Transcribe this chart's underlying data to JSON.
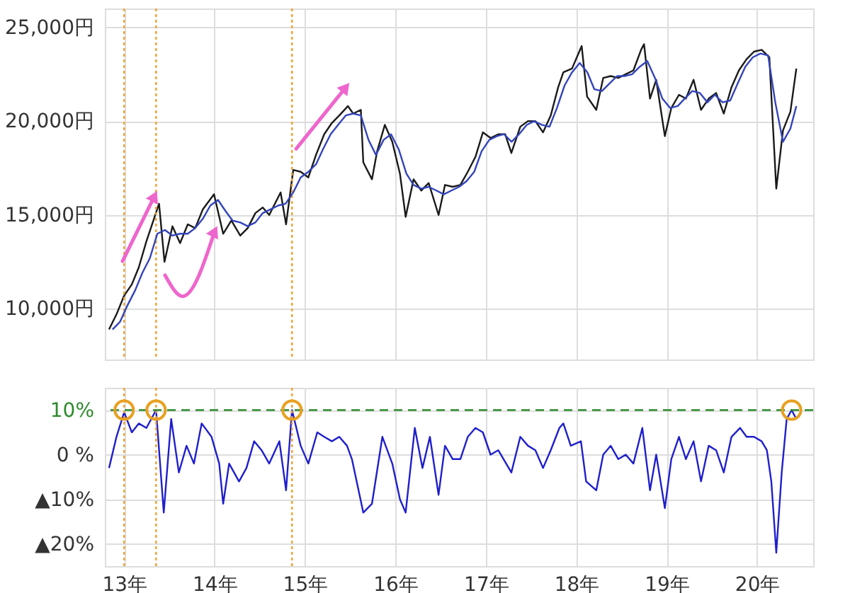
{
  "chart_data": [
    {
      "type": "line",
      "grid": true,
      "tick_labels": "y",
      "xlim": [
        "2012-10-15",
        "2020-08-15"
      ],
      "xticks": [
        {
          "value": "2013-01-01",
          "label": null
        },
        {
          "value": "2014-01-01",
          "label": null
        },
        {
          "value": "2015-01-01",
          "label": null
        },
        {
          "value": "2016-01-01",
          "label": null
        },
        {
          "value": "2017-01-01",
          "label": null
        },
        {
          "value": "2018-01-01",
          "label": null
        },
        {
          "value": "2019-01-01",
          "label": null
        },
        {
          "value": "2020-01-01",
          "label": null
        }
      ],
      "ylim": [
        7300,
        26000
      ],
      "yticks": [
        {
          "value": 10000,
          "label": "10,000円"
        },
        {
          "value": 15000,
          "label": "15,000円"
        },
        {
          "value": 20000,
          "label": "20,000円"
        },
        {
          "value": 25000,
          "label": "25,000円"
        }
      ],
      "series": [
        {
          "color": "#1a1a1a",
          "x": [
            "2012-11-01",
            "2012-12-01",
            "2013-01-01",
            "2013-02-01",
            "2013-03-01",
            "2013-04-01",
            "2013-05-22",
            "2013-06-13",
            "2013-07-15",
            "2013-08-15",
            "2013-09-15",
            "2013-10-15",
            "2013-11-15",
            "2013-12-30",
            "2014-02-05",
            "2014-03-10",
            "2014-04-15",
            "2014-05-15",
            "2014-06-15",
            "2014-07-15",
            "2014-08-10",
            "2014-09-25",
            "2014-10-17",
            "2014-11-15",
            "2014-12-15",
            "2015-01-15",
            "2015-02-15",
            "2015-03-20",
            "2015-04-20",
            "2015-05-20",
            "2015-06-24",
            "2015-07-15",
            "2015-08-15",
            "2015-08-25",
            "2015-09-29",
            "2015-10-20",
            "2015-11-20",
            "2015-12-20",
            "2016-01-20",
            "2016-02-12",
            "2016-03-15",
            "2016-04-15",
            "2016-05-15",
            "2016-06-24",
            "2016-07-20",
            "2016-08-20",
            "2016-09-20",
            "2016-10-20",
            "2016-11-20",
            "2016-12-20",
            "2017-01-20",
            "2017-02-20",
            "2017-03-20",
            "2017-04-14",
            "2017-05-20",
            "2017-06-20",
            "2017-07-20",
            "2017-08-20",
            "2017-09-20",
            "2017-10-20",
            "2017-11-10",
            "2017-12-15",
            "2018-01-23",
            "2018-02-14",
            "2018-03-23",
            "2018-04-20",
            "2018-05-20",
            "2018-06-20",
            "2018-07-20",
            "2018-08-20",
            "2018-09-20",
            "2018-10-02",
            "2018-10-26",
            "2018-11-20",
            "2018-12-25",
            "2019-01-20",
            "2019-02-20",
            "2019-03-20",
            "2019-04-20",
            "2019-05-20",
            "2019-06-20",
            "2019-07-20",
            "2019-08-20",
            "2019-09-20",
            "2019-10-20",
            "2019-11-20",
            "2019-12-20",
            "2020-01-20",
            "2020-02-20",
            "2020-03-19",
            "2020-04-15",
            "2020-05-15",
            "2020-06-08"
          ],
          "values": [
            8900,
            9700,
            10700,
            11300,
            12200,
            13600,
            15600,
            12500,
            14400,
            13500,
            14500,
            14300,
            15300,
            16100,
            14000,
            14700,
            13900,
            14300,
            15100,
            15400,
            15000,
            16200,
            14500,
            17400,
            17300,
            17000,
            18200,
            19300,
            19900,
            20300,
            20800,
            20400,
            20600,
            17800,
            16900,
            18400,
            19800,
            18900,
            17200,
            14900,
            16900,
            16300,
            16700,
            15000,
            16600,
            16500,
            16600,
            17300,
            18100,
            19400,
            19100,
            19300,
            19300,
            18300,
            19700,
            20000,
            20000,
            19400,
            20300,
            21800,
            22600,
            22800,
            24000,
            21300,
            20600,
            22300,
            22400,
            22300,
            22500,
            22700,
            23800,
            24100,
            21200,
            22200,
            19200,
            20700,
            21400,
            21200,
            22200,
            20600,
            21200,
            21500,
            20400,
            21800,
            22700,
            23300,
            23700,
            23800,
            23400,
            16400,
            19500,
            20500,
            22800
          ]
        },
        {
          "color": "#3344bb",
          "x": [
            "2012-11-15",
            "2012-12-15",
            "2013-01-15",
            "2013-02-15",
            "2013-03-15",
            "2013-04-15",
            "2013-05-15",
            "2013-06-15",
            "2013-07-15",
            "2013-08-15",
            "2013-09-15",
            "2013-10-15",
            "2013-11-15",
            "2013-12-15",
            "2014-01-15",
            "2014-02-15",
            "2014-03-15",
            "2014-04-15",
            "2014-05-15",
            "2014-06-15",
            "2014-07-15",
            "2014-08-15",
            "2014-09-15",
            "2014-10-15",
            "2014-11-15",
            "2014-12-15",
            "2015-01-15",
            "2015-02-15",
            "2015-03-15",
            "2015-04-15",
            "2015-05-15",
            "2015-06-15",
            "2015-07-15",
            "2015-08-15",
            "2015-09-15",
            "2015-10-15",
            "2015-11-15",
            "2015-12-15",
            "2016-01-15",
            "2016-02-15",
            "2016-03-15",
            "2016-04-15",
            "2016-05-15",
            "2016-06-15",
            "2016-07-15",
            "2016-08-15",
            "2016-09-15",
            "2016-10-15",
            "2016-11-15",
            "2016-12-15",
            "2017-01-15",
            "2017-02-15",
            "2017-03-15",
            "2017-04-15",
            "2017-05-15",
            "2017-06-15",
            "2017-07-15",
            "2017-08-15",
            "2017-09-15",
            "2017-10-15",
            "2017-11-15",
            "2017-12-15",
            "2018-01-15",
            "2018-02-15",
            "2018-03-15",
            "2018-04-15",
            "2018-05-15",
            "2018-06-15",
            "2018-07-15",
            "2018-08-15",
            "2018-09-15",
            "2018-10-15",
            "2018-11-15",
            "2018-12-15",
            "2019-01-15",
            "2019-02-15",
            "2019-03-15",
            "2019-04-15",
            "2019-05-15",
            "2019-06-15",
            "2019-07-15",
            "2019-08-15",
            "2019-09-15",
            "2019-10-15",
            "2019-11-15",
            "2019-12-15",
            "2020-01-15",
            "2020-02-15",
            "2020-03-15",
            "2020-04-15",
            "2020-05-15",
            "2020-06-08"
          ],
          "values": [
            8900,
            9300,
            10200,
            11000,
            11900,
            12700,
            14000,
            14200,
            13900,
            14000,
            14000,
            14300,
            14800,
            15500,
            15800,
            15200,
            14700,
            14600,
            14400,
            14600,
            15100,
            15300,
            15500,
            15600,
            16200,
            17000,
            17300,
            17700,
            18500,
            19300,
            19800,
            20300,
            20400,
            20300,
            19000,
            18200,
            19000,
            19300,
            18500,
            17200,
            16600,
            16400,
            16500,
            16300,
            16100,
            16300,
            16500,
            16800,
            17300,
            18400,
            19000,
            19200,
            19300,
            18900,
            19300,
            19800,
            20000,
            19800,
            19700,
            20700,
            21900,
            22600,
            23100,
            22600,
            21700,
            21600,
            22000,
            22400,
            22400,
            22500,
            22900,
            23200,
            22300,
            21200,
            20700,
            20800,
            21200,
            21600,
            21500,
            21000,
            21400,
            21000,
            21100,
            22000,
            22900,
            23400,
            23600,
            23500,
            21000,
            18900,
            19600,
            20800
          ]
        }
      ],
      "ref_lines": [
        {
          "axis": "x",
          "value": "2013-01-01",
          "color": "#f0a030",
          "line_style": "dotted"
        },
        {
          "axis": "x",
          "value": "2013-05-10",
          "color": "#f0a030",
          "line_style": "dotted"
        },
        {
          "axis": "x",
          "value": "2014-11-10",
          "color": "#f0a030",
          "line_style": "dotted"
        }
      ]
    },
    {
      "type": "line",
      "grid": true,
      "xlim": [
        "2012-10-15",
        "2020-08-15"
      ],
      "xticks": [
        {
          "value": "2013-01-01",
          "label": "13年"
        },
        {
          "value": "2014-01-01",
          "label": "14年"
        },
        {
          "value": "2015-01-01",
          "label": "15年"
        },
        {
          "value": "2016-01-01",
          "label": "16年"
        },
        {
          "value": "2017-01-01",
          "label": "17年"
        },
        {
          "value": "2018-01-01",
          "label": "18年"
        },
        {
          "value": "2019-01-01",
          "label": "19年"
        },
        {
          "value": "2020-01-01",
          "label": "20年"
        }
      ],
      "ylim": [
        -25,
        15
      ],
      "yticks": [
        {
          "value": 10,
          "label": "10%"
        },
        {
          "value": 0,
          "label": "0 %"
        },
        {
          "value": -10,
          "label": "▲10%"
        },
        {
          "value": -20,
          "label": "▲20%"
        }
      ],
      "series": [
        {
          "color": "#1f1fcc",
          "x": [
            "2012-11-01",
            "2012-12-01",
            "2013-01-01",
            "2013-02-01",
            "2013-03-01",
            "2013-04-01",
            "2013-05-10",
            "2013-06-10",
            "2013-07-10",
            "2013-08-10",
            "2013-09-10",
            "2013-10-10",
            "2013-11-10",
            "2013-12-20",
            "2014-01-20",
            "2014-02-05",
            "2014-03-01",
            "2014-04-10",
            "2014-05-10",
            "2014-06-10",
            "2014-07-10",
            "2014-08-10",
            "2014-09-20",
            "2014-10-17",
            "2014-11-10",
            "2014-12-15",
            "2015-01-15",
            "2015-02-20",
            "2015-03-20",
            "2015-04-20",
            "2015-05-20",
            "2015-06-20",
            "2015-07-10",
            "2015-08-25",
            "2015-09-29",
            "2015-11-10",
            "2015-12-20",
            "2016-01-20",
            "2016-02-12",
            "2016-03-20",
            "2016-04-20",
            "2016-05-20",
            "2016-06-24",
            "2016-07-20",
            "2016-08-20",
            "2016-09-20",
            "2016-10-20",
            "2016-11-20",
            "2016-12-20",
            "2017-01-20",
            "2017-02-20",
            "2017-04-14",
            "2017-05-20",
            "2017-06-20",
            "2017-07-20",
            "2017-08-20",
            "2017-09-20",
            "2017-10-25",
            "2017-11-10",
            "2017-12-10",
            "2018-01-20",
            "2018-02-10",
            "2018-03-23",
            "2018-04-20",
            "2018-05-20",
            "2018-06-20",
            "2018-07-20",
            "2018-08-20",
            "2018-09-25",
            "2018-10-26",
            "2018-11-20",
            "2018-12-25",
            "2019-01-20",
            "2019-02-20",
            "2019-03-20",
            "2019-04-20",
            "2019-05-20",
            "2019-06-20",
            "2019-07-20",
            "2019-08-20",
            "2019-09-20",
            "2019-10-25",
            "2019-11-20",
            "2019-12-20",
            "2020-01-20",
            "2020-02-10",
            "2020-02-28",
            "2020-03-19",
            "2020-04-10",
            "2020-04-30",
            "2020-05-20",
            "2020-06-08"
          ],
          "values": [
            -3,
            4,
            9.5,
            5,
            7,
            6,
            10,
            -13,
            8,
            -4,
            2,
            -2,
            7,
            4,
            -2,
            -11,
            -2,
            -6,
            -3,
            3,
            1,
            -2,
            3,
            -8,
            10,
            2,
            -2,
            5,
            4,
            3,
            4,
            2,
            -1,
            -13,
            -11,
            4,
            -2,
            -10,
            -13,
            6,
            -3,
            4,
            -9,
            2,
            -1,
            -1,
            4,
            6,
            5,
            0,
            1,
            -4,
            4,
            2,
            1,
            -3,
            1,
            6,
            7,
            2,
            3,
            -6,
            -8,
            0,
            2,
            -1,
            0,
            -2,
            6,
            -8,
            0,
            -12,
            -1,
            4,
            -1,
            3,
            -6,
            2,
            1,
            -4,
            4,
            6,
            4,
            4,
            3,
            1,
            -6,
            -22,
            -4,
            8,
            10,
            8
          ]
        },
        {
          "type": "scatter",
          "marker": "circle",
          "color": "#e8a020",
          "x": [
            "2013-01-01",
            "2013-05-10",
            "2014-11-10",
            "2020-05-20"
          ],
          "values": [
            10,
            10,
            10,
            10
          ]
        }
      ],
      "ref_lines": [
        {
          "axis": "y",
          "value": 10,
          "color": "#2e8b2e",
          "line_style": "dashed"
        },
        {
          "axis": "x",
          "value": "2013-01-01",
          "color": "#f0a030",
          "line_style": "dotted"
        },
        {
          "axis": "x",
          "value": "2013-05-10",
          "color": "#f0a030",
          "line_style": "dotted"
        },
        {
          "axis": "x",
          "value": "2014-11-10",
          "color": "#f0a030",
          "line_style": "dotted"
        }
      ]
    }
  ]
}
